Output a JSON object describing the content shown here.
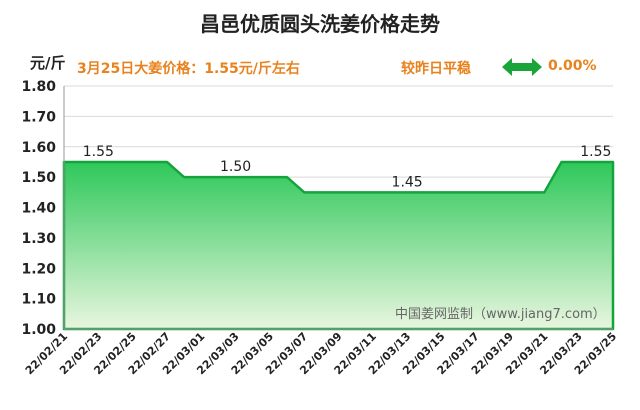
{
  "header": {
    "title": "昌邑优质圆头洗姜价格走势",
    "unit": "元/斤",
    "price_info": "3月25日大姜价格：1.55元/斤左右",
    "compare_text": "较昨日平稳",
    "change_pct": "0.00%",
    "arrow_icon": "double-arrow-icon",
    "accent_color": "#e8821e",
    "arrow_color": "#1aa53a"
  },
  "watermark": "中国姜网监制（www.jiang7.com）",
  "chart_data": {
    "type": "area",
    "title": "昌邑优质圆头洗姜价格走势",
    "ylabel": "元/斤",
    "ylim": [
      1.0,
      1.8
    ],
    "yticks": [
      "1.00",
      "1.10",
      "1.20",
      "1.30",
      "1.40",
      "1.50",
      "1.60",
      "1.70",
      "1.80"
    ],
    "x_ticks": [
      "22/02/21",
      "22/02/23",
      "22/02/25",
      "22/02/27",
      "22/03/01",
      "22/03/03",
      "22/03/05",
      "22/03/07",
      "22/03/09",
      "22/03/11",
      "22/03/13",
      "22/03/15",
      "22/03/17",
      "22/03/19",
      "22/03/21",
      "22/03/23",
      "22/03/25"
    ],
    "x": [
      "22/02/21",
      "22/02/22",
      "22/02/23",
      "22/02/24",
      "22/02/25",
      "22/02/26",
      "22/02/27",
      "22/02/28",
      "22/03/01",
      "22/03/02",
      "22/03/03",
      "22/03/04",
      "22/03/05",
      "22/03/06",
      "22/03/07",
      "22/03/08",
      "22/03/09",
      "22/03/10",
      "22/03/11",
      "22/03/12",
      "22/03/13",
      "22/03/14",
      "22/03/15",
      "22/03/16",
      "22/03/17",
      "22/03/18",
      "22/03/19",
      "22/03/20",
      "22/03/21",
      "22/03/22",
      "22/03/23",
      "22/03/24",
      "22/03/25"
    ],
    "values": [
      1.55,
      1.55,
      1.55,
      1.55,
      1.55,
      1.55,
      1.55,
      1.5,
      1.5,
      1.5,
      1.5,
      1.5,
      1.5,
      1.5,
      1.45,
      1.45,
      1.45,
      1.45,
      1.45,
      1.45,
      1.45,
      1.45,
      1.45,
      1.45,
      1.45,
      1.45,
      1.45,
      1.45,
      1.45,
      1.55,
      1.55,
      1.55,
      1.55
    ],
    "data_labels": [
      {
        "x": "22/02/23",
        "text": "1.55"
      },
      {
        "x": "22/03/03",
        "text": "1.50"
      },
      {
        "x": "22/03/13",
        "text": "1.45"
      },
      {
        "x": "22/03/24",
        "text": "1.55"
      }
    ],
    "grid": "horizontal",
    "line_color": "#15a33e",
    "fill_top": "#2ec85a",
    "fill_bottom": "#e9f6df"
  }
}
